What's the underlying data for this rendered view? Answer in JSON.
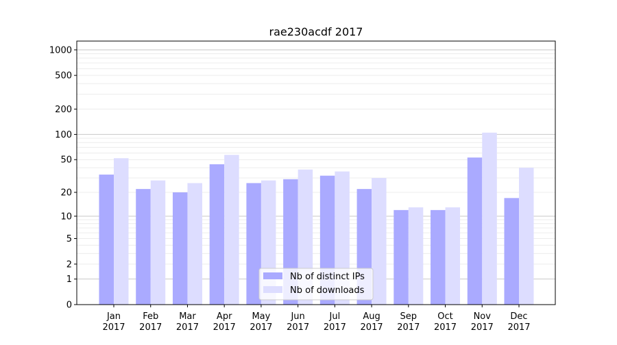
{
  "chart_data": {
    "type": "bar",
    "title": "rae230acdf 2017",
    "categories": [
      "Jan\n2017",
      "Feb\n2017",
      "Mar\n2017",
      "Apr\n2017",
      "May\n2017",
      "Jun\n2017",
      "Jul\n2017",
      "Aug\n2017",
      "Sep\n2017",
      "Oct\n2017",
      "Nov\n2017",
      "Dec\n2017"
    ],
    "series": [
      {
        "name": "Nb of distinct IPs",
        "color": "#aaaaff",
        "values": [
          33,
          22,
          20,
          44,
          26,
          29,
          32,
          22,
          12,
          12,
          53,
          17
        ]
      },
      {
        "name": "Nb of downloads",
        "color": "#ddddff",
        "values": [
          52,
          28,
          26,
          57,
          28,
          38,
          36,
          30,
          13,
          13,
          105,
          40
        ]
      }
    ],
    "yscale": "log(1+y)",
    "yticks": [
      0,
      1,
      2,
      5,
      10,
      20,
      50,
      100,
      200,
      500,
      1000
    ],
    "ylim": [
      0,
      1270
    ],
    "grid": true,
    "legend": "bottom-center",
    "xlabel": "",
    "ylabel": ""
  }
}
